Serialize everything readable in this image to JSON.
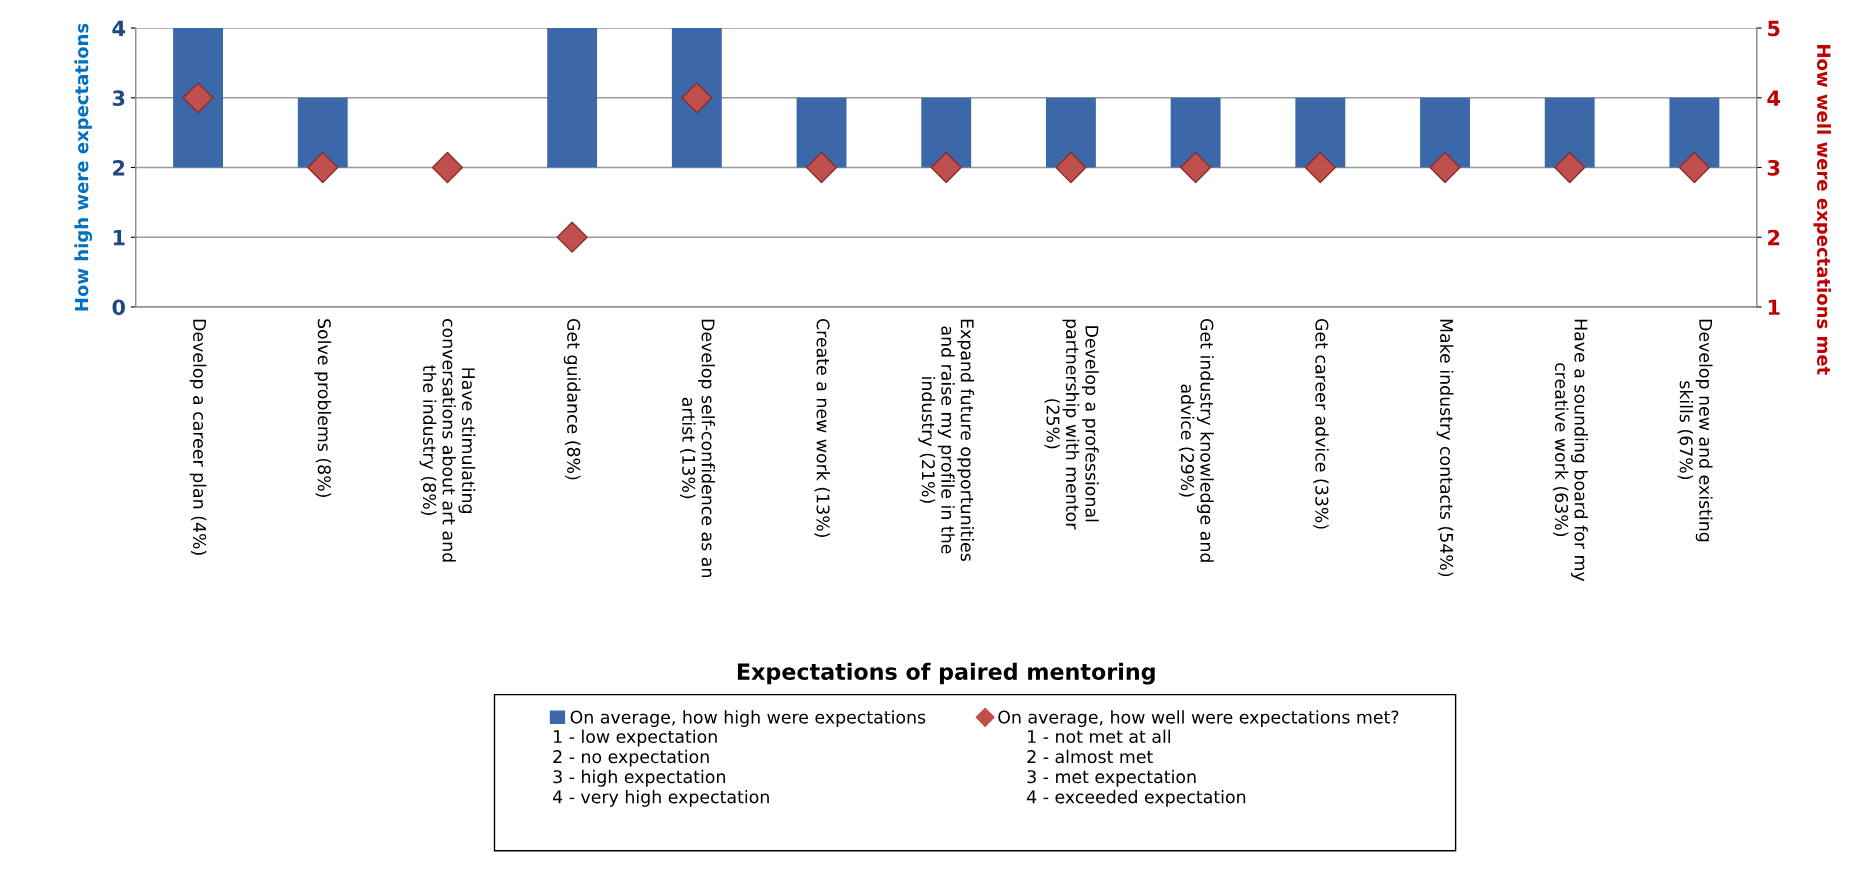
{
  "chart_data": {
    "type": "bar",
    "xlabel": "Expectations of paired mentoring",
    "ylabel": "How high were expectations",
    "y2label": "How well were expectations met",
    "categories": [
      "Develop a career plan (4%)",
      "Solve problems (8%)",
      "Have stimulating\nconversations about art and\nthe industry (8%)",
      "Get guidance (8%)",
      "Develop self-confidence as an\nartist (13%)",
      "Create a new work (13%)",
      "Expand future opportunities\nand raise my profile in the\nindustry (21%)",
      "Develop a professional\npartnership with mentor\n(25%)",
      "Get industry knowledge and\nadvice (29%)",
      "Get career advice (33%)",
      "Make industry contacts (54%)",
      "Have a sounding board for my\ncreative work (63%)",
      "Develop new and existing\nskills (67%)"
    ],
    "series": [
      {
        "name": "On average, how high were expectations",
        "color": "#3b68a9",
        "base": [
          2,
          2,
          null,
          2,
          2,
          2,
          2,
          2,
          2,
          2,
          2,
          2,
          2
        ],
        "values": [
          2,
          1,
          null,
          2,
          2,
          1,
          1,
          1,
          1,
          1,
          1,
          1,
          1
        ]
      },
      {
        "name": "On average, how well were expectations met?",
        "type": "scatter",
        "axis": "y2",
        "marker": "diamond",
        "color": "#c0504d",
        "values": [
          4,
          3,
          3,
          2,
          4,
          3,
          3,
          3,
          3,
          3,
          3,
          3,
          3
        ]
      }
    ],
    "ylim": [
      0,
      4
    ],
    "yticks": [
      0,
      1,
      2,
      3,
      4
    ],
    "y2lim": [
      1,
      5
    ],
    "y2ticks": [
      1,
      2,
      3,
      4,
      5
    ],
    "grid": "y",
    "legend": "bottom",
    "annotations": [
      "1 - low expectation\n2 - no expectation\n3 - high expectation\n4 - very high expectation",
      "1 - not met at all\n2 - almost met\n3 - met expectation\n4 - exceeded expectation"
    ]
  }
}
